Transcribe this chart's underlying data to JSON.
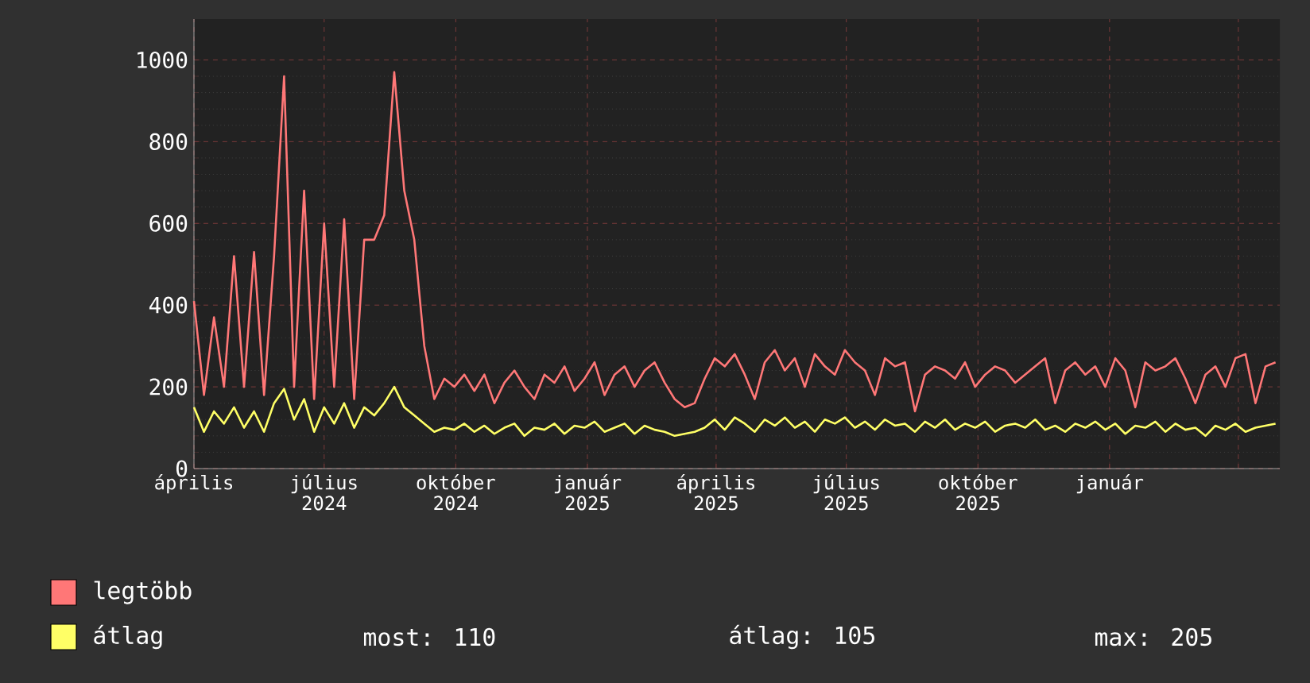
{
  "chart_data": {
    "type": "line",
    "x": [
      "2024-04-01",
      "2024-04-08",
      "2024-04-15",
      "2024-04-22",
      "2024-04-29",
      "2024-05-06",
      "2024-05-13",
      "2024-05-20",
      "2024-05-27",
      "2024-06-03",
      "2024-06-10",
      "2024-06-17",
      "2024-06-24",
      "2024-07-01",
      "2024-07-08",
      "2024-07-15",
      "2024-07-22",
      "2024-07-29",
      "2024-08-05",
      "2024-08-12",
      "2024-08-19",
      "2024-08-26",
      "2024-09-02",
      "2024-09-09",
      "2024-09-16",
      "2024-09-23",
      "2024-09-30",
      "2024-10-07",
      "2024-10-14",
      "2024-10-21",
      "2024-10-28",
      "2024-11-04",
      "2024-11-11",
      "2024-11-18",
      "2024-11-25",
      "2024-12-02",
      "2024-12-09",
      "2024-12-16",
      "2024-12-23",
      "2024-12-30",
      "2025-01-06",
      "2025-01-13",
      "2025-01-20",
      "2025-01-27",
      "2025-02-03",
      "2025-02-10",
      "2025-02-17",
      "2025-02-24",
      "2025-03-03",
      "2025-03-10",
      "2025-03-17",
      "2025-03-24",
      "2025-03-31",
      "2025-04-07",
      "2025-04-14",
      "2025-04-21",
      "2025-04-28",
      "2025-05-05",
      "2025-05-12",
      "2025-05-19",
      "2025-05-26",
      "2025-06-02",
      "2025-06-09",
      "2025-06-16",
      "2025-06-23",
      "2025-06-30",
      "2025-07-07",
      "2025-07-14",
      "2025-07-21",
      "2025-07-28",
      "2025-08-04",
      "2025-08-11",
      "2025-08-18",
      "2025-08-25",
      "2025-09-01",
      "2025-09-08",
      "2025-09-15",
      "2025-09-22",
      "2025-09-29",
      "2025-10-06",
      "2025-10-13",
      "2025-10-20",
      "2025-10-27",
      "2025-11-03",
      "2025-11-10",
      "2025-11-17",
      "2025-11-24",
      "2025-12-01",
      "2025-12-08",
      "2025-12-15",
      "2025-12-22",
      "2025-12-29",
      "2026-01-05",
      "2026-01-12",
      "2026-01-19",
      "2026-01-26",
      "2026-02-02",
      "2026-02-09",
      "2026-02-16",
      "2026-02-23",
      "2026-03-02",
      "2026-03-09",
      "2026-03-16",
      "2026-03-23",
      "2026-03-30",
      "2026-04-06",
      "2026-04-13",
      "2026-04-20",
      "2026-04-27"
    ],
    "series": [
      {
        "name": "legtöbb",
        "color": "#ff7777",
        "values": [
          410,
          180,
          370,
          200,
          520,
          200,
          530,
          180,
          520,
          960,
          200,
          680,
          170,
          600,
          200,
          610,
          170,
          560,
          560,
          620,
          970,
          680,
          560,
          300,
          170,
          220,
          200,
          230,
          190,
          230,
          160,
          210,
          240,
          200,
          170,
          230,
          210,
          250,
          190,
          220,
          260,
          180,
          230,
          250,
          200,
          240,
          260,
          210,
          170,
          150,
          160,
          220,
          270,
          250,
          280,
          230,
          170,
          260,
          290,
          240,
          270,
          200,
          280,
          250,
          230,
          290,
          260,
          240,
          180,
          270,
          250,
          260,
          140,
          230,
          250,
          240,
          220,
          260,
          200,
          230,
          250,
          240,
          210,
          230,
          250,
          270,
          160,
          240,
          260,
          230,
          250,
          200,
          270,
          240,
          150,
          260,
          240,
          250,
          270,
          220,
          160,
          230,
          250,
          200,
          270,
          280,
          160,
          250,
          260
        ]
      },
      {
        "name": "átlag",
        "color": "#ffff66",
        "values": [
          150,
          90,
          140,
          110,
          150,
          100,
          140,
          90,
          160,
          195,
          120,
          170,
          90,
          150,
          110,
          160,
          100,
          150,
          130,
          160,
          200,
          150,
          130,
          110,
          90,
          100,
          95,
          110,
          90,
          105,
          85,
          100,
          110,
          80,
          100,
          95,
          110,
          85,
          105,
          100,
          115,
          90,
          100,
          110,
          85,
          105,
          95,
          90,
          80,
          85,
          90,
          100,
          120,
          95,
          125,
          110,
          90,
          120,
          105,
          125,
          100,
          115,
          90,
          120,
          110,
          125,
          100,
          115,
          95,
          120,
          105,
          110,
          90,
          115,
          100,
          120,
          95,
          110,
          100,
          115,
          90,
          105,
          110,
          100,
          120,
          95,
          105,
          90,
          110,
          100,
          115,
          95,
          110,
          85,
          105,
          100,
          115,
          90,
          110,
          95,
          100,
          80,
          105,
          95,
          110,
          90,
          100,
          105,
          110
        ]
      }
    ],
    "xlim": [
      "2024-04-01",
      "2026-04-30"
    ],
    "xticks": [
      {
        "value": "2024-04-01",
        "label": "április"
      },
      {
        "value": "2024-07-01",
        "label": "július 2024"
      },
      {
        "value": "2024-10-01",
        "label": "október 2024"
      },
      {
        "value": "2025-01-01",
        "label": "január 2025"
      },
      {
        "value": "2025-04-01",
        "label": "április 2025"
      },
      {
        "value": "2025-07-01",
        "label": "július 2025"
      },
      {
        "value": "2025-10-01",
        "label": "október 2025"
      },
      {
        "value": "2026-01-01",
        "label": "január"
      },
      {
        "value": "2026-04-01",
        "label": null
      }
    ],
    "ylim": [
      0,
      1100
    ],
    "yticks": [
      0,
      200,
      400,
      600,
      800,
      1000
    ],
    "grid": true,
    "legend": "bottom left",
    "annotations": [
      "most: 110",
      "átlag: 105",
      "max: 205"
    ]
  }
}
